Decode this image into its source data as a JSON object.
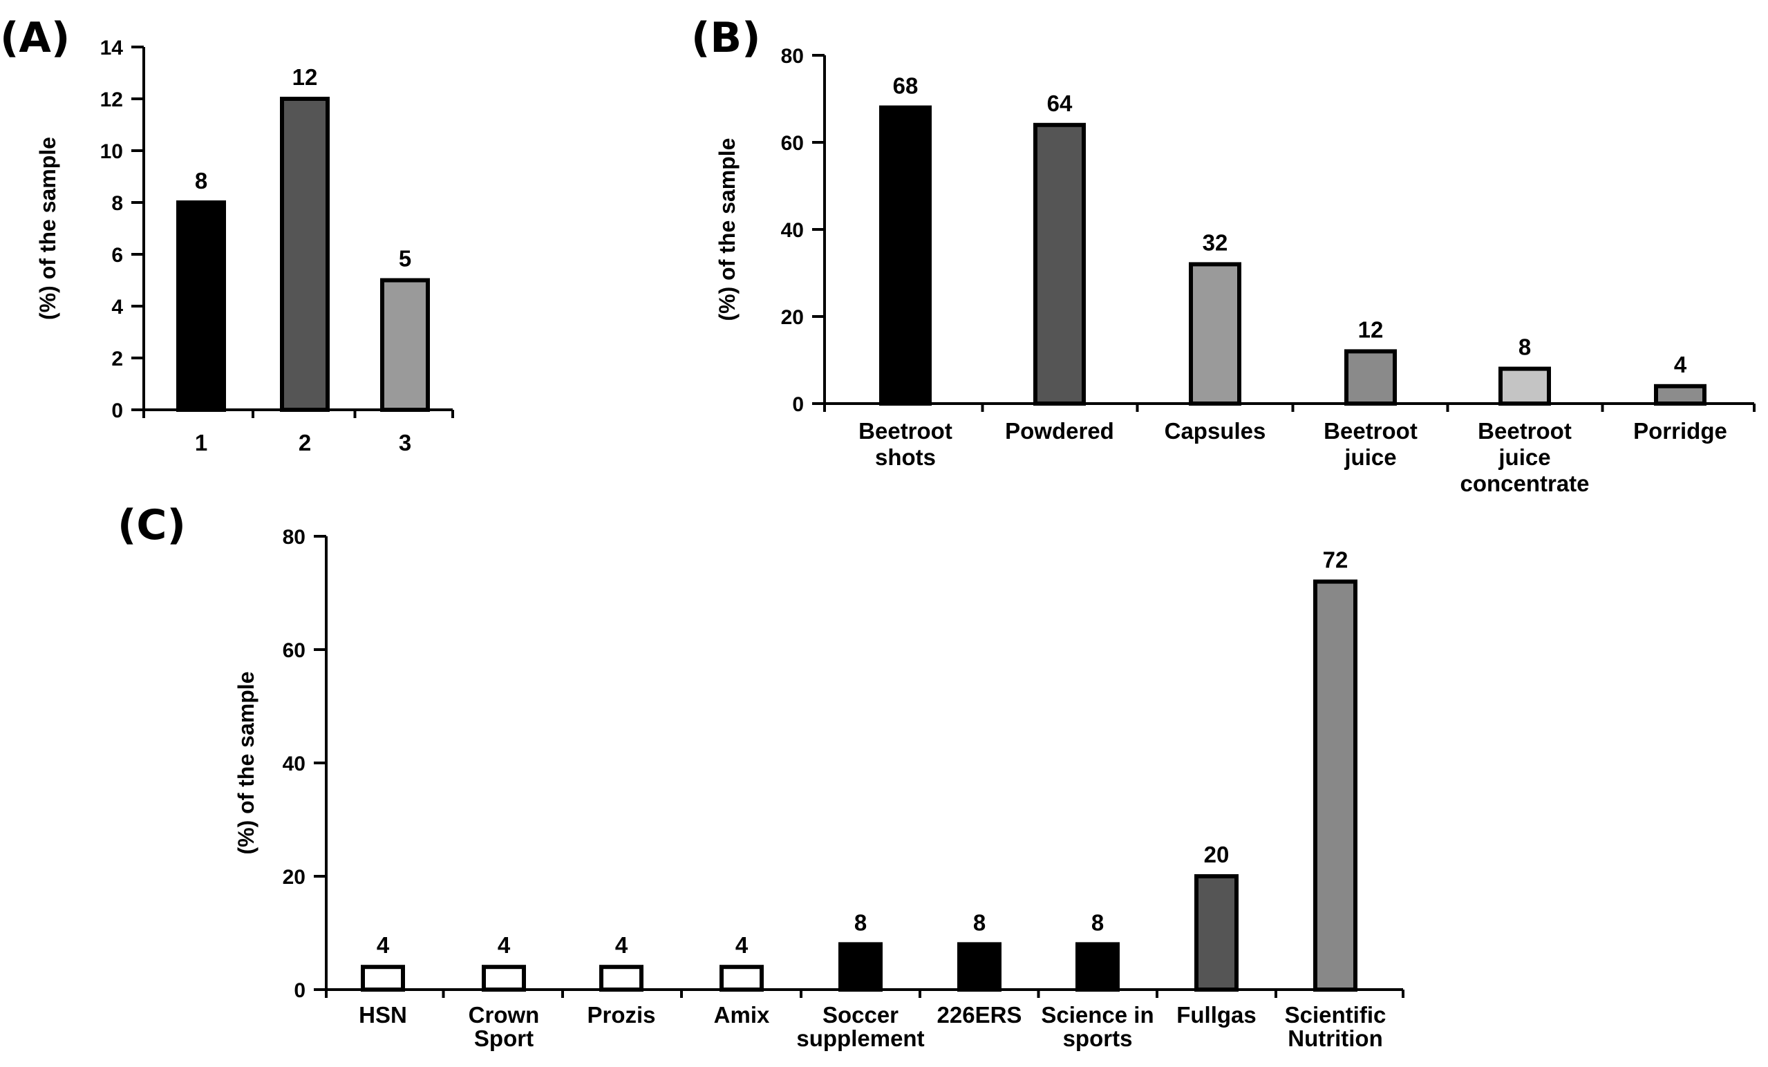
{
  "chart_data": [
    {
      "id": "A",
      "type": "bar",
      "panel_label": "(A)",
      "ylabel": "(%) of the sample",
      "ylim": [
        0,
        14
      ],
      "yticks": [
        0,
        2,
        4,
        6,
        8,
        10,
        12,
        14
      ],
      "categories": [
        "1",
        "2",
        "3"
      ],
      "values": [
        8,
        12,
        5
      ],
      "value_labels": [
        "8",
        "12",
        "5"
      ],
      "fills": [
        "#000000",
        "#555555",
        "#9a9a9a"
      ]
    },
    {
      "id": "B",
      "type": "bar",
      "panel_label": "(B)",
      "ylabel": "(%) of the sample",
      "ylim": [
        0,
        80
      ],
      "yticks": [
        0,
        20,
        40,
        60,
        80
      ],
      "categories": [
        "Beetroot shots",
        "Powdered",
        "Capsules",
        "Beetroot juice",
        "Beetroot juice concentrate",
        "Porridge"
      ],
      "category_lines": [
        [
          "Beetroot",
          "shots"
        ],
        [
          "Powdered"
        ],
        [
          "Capsules"
        ],
        [
          "Beetroot",
          "juice"
        ],
        [
          "Beetroot",
          "juice",
          "concentrate"
        ],
        [
          "Porridge"
        ]
      ],
      "values": [
        68,
        64,
        32,
        12,
        8,
        4
      ],
      "value_labels": [
        "68",
        "64",
        "32",
        "12",
        "8",
        "4"
      ],
      "fills": [
        "#000000",
        "#555555",
        "#9a9a9a",
        "#8a8a8a",
        "#c4c4c4",
        "#8c8c8c"
      ]
    },
    {
      "id": "C",
      "type": "bar",
      "panel_label": "(C)",
      "ylabel": "(%) of the sample",
      "ylim": [
        0,
        80
      ],
      "yticks": [
        0,
        20,
        40,
        60,
        80
      ],
      "categories": [
        "HSN",
        "Crown Sport",
        "Prozis",
        "Amix",
        "Soccer supplement",
        "226ERS",
        "Science in sports",
        "Fullgas",
        "Scientific Nutrition"
      ],
      "category_lines": [
        [
          "HSN"
        ],
        [
          "Crown",
          "Sport"
        ],
        [
          "Prozis"
        ],
        [
          "Amix"
        ],
        [
          "Soccer",
          "supplement"
        ],
        [
          "226ERS"
        ],
        [
          "Science in",
          "sports"
        ],
        [
          "Fullgas"
        ],
        [
          "Scientific",
          "Nutrition"
        ]
      ],
      "values": [
        4,
        4,
        4,
        4,
        8,
        8,
        8,
        20,
        72
      ],
      "value_labels": [
        "4",
        "4",
        "4",
        "4",
        "8",
        "8",
        "8",
        "20",
        "72"
      ],
      "fills": [
        "#ffffff",
        "#ffffff",
        "#ffffff",
        "#ffffff",
        "#000000",
        "#000000",
        "#000000",
        "#555555",
        "#888888"
      ]
    }
  ]
}
